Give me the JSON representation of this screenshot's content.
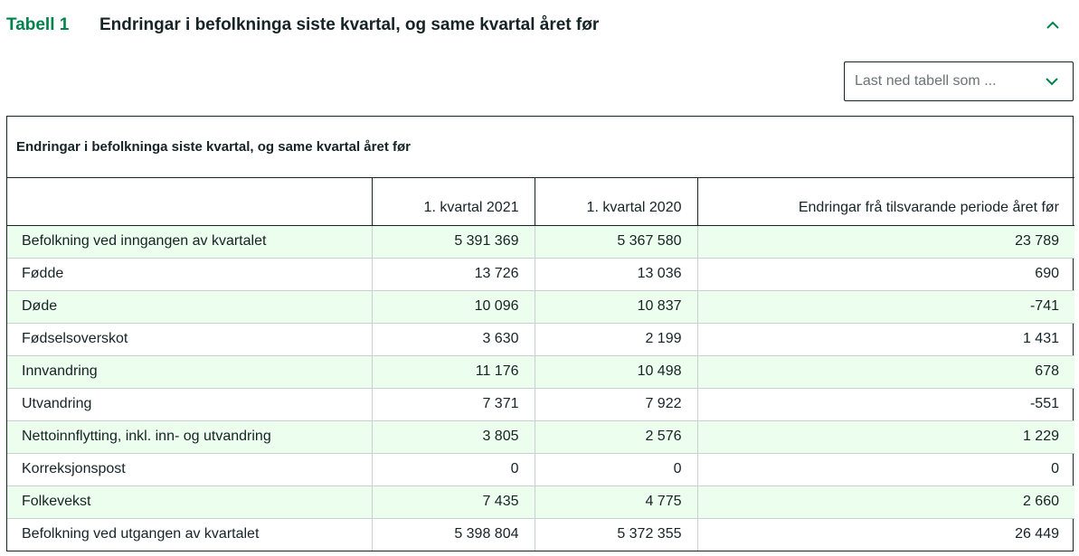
{
  "header": {
    "label": "Tabell 1",
    "title": "Endringar i befolkninga siste kvartal, og same kvartal året før",
    "collapse_icon": "chevron-up-icon"
  },
  "download": {
    "placeholder": "Last ned tabell som ...",
    "icon": "chevron-down-icon"
  },
  "colors": {
    "accent": "#00824d",
    "row_alt": "#ecfeed",
    "text": "#162327"
  },
  "table": {
    "caption": "Endringar i befolkninga siste kvartal, og same kvartal året før",
    "columns": [
      "",
      "1. kvartal 2021",
      "1. kvartal 2020",
      "Endringar frå tilsvarande periode året før"
    ],
    "rows": [
      [
        "Befolkning ved inngangen av kvartalet",
        "5 391 369",
        "5 367 580",
        "23 789"
      ],
      [
        "Fødde",
        "13 726",
        "13 036",
        "690"
      ],
      [
        "Døde",
        "10 096",
        "10 837",
        "-741"
      ],
      [
        "Fødselsoverskot",
        "3 630",
        "2 199",
        "1 431"
      ],
      [
        "Innvandring",
        "11 176",
        "10 498",
        "678"
      ],
      [
        "Utvandring",
        "7 371",
        "7 922",
        "-551"
      ],
      [
        "Nettoinnflytting, inkl. inn- og utvandring",
        "3 805",
        "2 576",
        "1 229"
      ],
      [
        "Korreksjonspost",
        "0",
        "0",
        "0"
      ],
      [
        "Folkevekst",
        "7 435",
        "4 775",
        "2 660"
      ],
      [
        "Befolkning ved utgangen av kvartalet",
        "5 398 804",
        "5 372 355",
        "26 449"
      ]
    ]
  }
}
